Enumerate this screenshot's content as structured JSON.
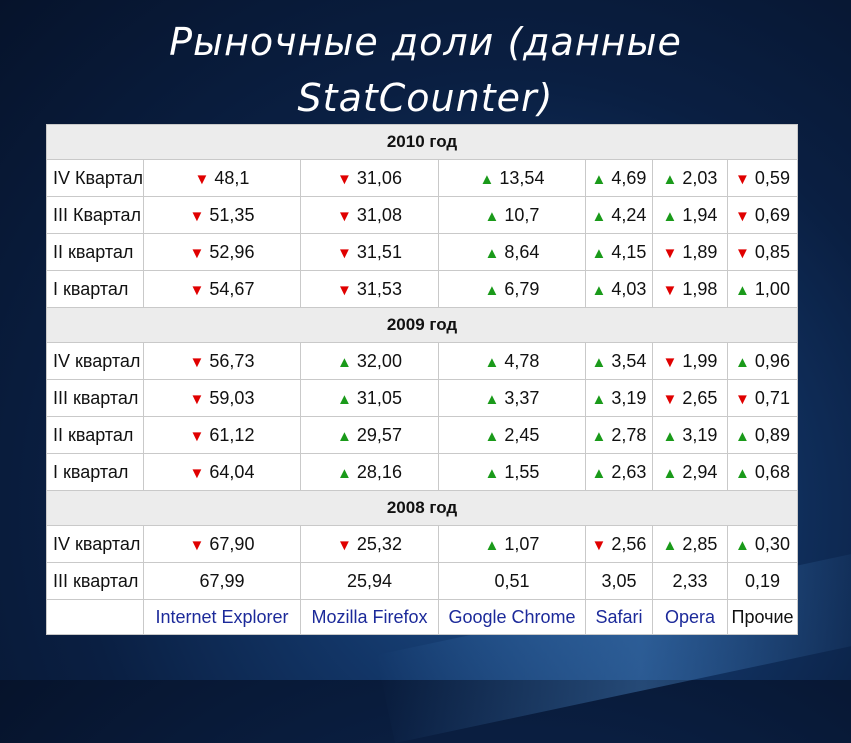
{
  "title_line1": "Рыночные доли (данные",
  "title_line2": "StatCounter)",
  "browsers": [
    "Internet Explorer",
    "Mozilla Firefox",
    "Google Chrome",
    "Safari",
    "Opera",
    "Прочие"
  ],
  "groups": [
    {
      "year": "2010 год",
      "rows": [
        {
          "label": "IV Квартал",
          "cells": [
            {
              "t": "down",
              "v": "48,1"
            },
            {
              "t": "down",
              "v": "31,06"
            },
            {
              "t": "up",
              "v": "13,54"
            },
            {
              "t": "up",
              "v": "4,69"
            },
            {
              "t": "up",
              "v": "2,03"
            },
            {
              "t": "down",
              "v": "0,59"
            }
          ]
        },
        {
          "label": "III Квартал",
          "cells": [
            {
              "t": "down",
              "v": "51,35"
            },
            {
              "t": "down",
              "v": "31,08"
            },
            {
              "t": "up",
              "v": "10,7"
            },
            {
              "t": "up",
              "v": "4,24"
            },
            {
              "t": "up",
              "v": "1,94"
            },
            {
              "t": "down",
              "v": "0,69"
            }
          ]
        },
        {
          "label": "II квартал",
          "cells": [
            {
              "t": "down",
              "v": "52,96"
            },
            {
              "t": "down",
              "v": "31,51"
            },
            {
              "t": "up",
              "v": "8,64"
            },
            {
              "t": "up",
              "v": "4,15"
            },
            {
              "t": "down",
              "v": "1,89"
            },
            {
              "t": "down",
              "v": "0,85"
            }
          ]
        },
        {
          "label": "I квартал",
          "cells": [
            {
              "t": "down",
              "v": "54,67"
            },
            {
              "t": "down",
              "v": "31,53"
            },
            {
              "t": "up",
              "v": "6,79"
            },
            {
              "t": "up",
              "v": "4,03"
            },
            {
              "t": "down",
              "v": "1,98"
            },
            {
              "t": "up",
              "v": "1,00"
            }
          ]
        }
      ]
    },
    {
      "year": "2009 год",
      "rows": [
        {
          "label": "IV квартал",
          "cells": [
            {
              "t": "down",
              "v": "56,73"
            },
            {
              "t": "up",
              "v": "32,00"
            },
            {
              "t": "up",
              "v": "4,78"
            },
            {
              "t": "up",
              "v": "3,54"
            },
            {
              "t": "down",
              "v": "1,99"
            },
            {
              "t": "up",
              "v": "0,96"
            }
          ]
        },
        {
          "label": "III квартал",
          "cells": [
            {
              "t": "down",
              "v": "59,03"
            },
            {
              "t": "up",
              "v": "31,05"
            },
            {
              "t": "up",
              "v": "3,37"
            },
            {
              "t": "up",
              "v": "3,19"
            },
            {
              "t": "down",
              "v": "2,65"
            },
            {
              "t": "down",
              "v": "0,71"
            }
          ]
        },
        {
          "label": "II квартал",
          "cells": [
            {
              "t": "down",
              "v": "61,12"
            },
            {
              "t": "up",
              "v": "29,57"
            },
            {
              "t": "up",
              "v": "2,45"
            },
            {
              "t": "up",
              "v": "2,78"
            },
            {
              "t": "up",
              "v": "3,19"
            },
            {
              "t": "up",
              "v": "0,89"
            }
          ]
        },
        {
          "label": "I квартал",
          "cells": [
            {
              "t": "down",
              "v": "64,04"
            },
            {
              "t": "up",
              "v": "28,16"
            },
            {
              "t": "up",
              "v": "1,55"
            },
            {
              "t": "up",
              "v": "2,63"
            },
            {
              "t": "up",
              "v": "2,94"
            },
            {
              "t": "up",
              "v": "0,68"
            }
          ]
        }
      ]
    },
    {
      "year": "2008 год",
      "rows": [
        {
          "label": "IV квартал",
          "cells": [
            {
              "t": "down",
              "v": "67,90"
            },
            {
              "t": "down",
              "v": "25,32"
            },
            {
              "t": "up",
              "v": "1,07"
            },
            {
              "t": "down",
              "v": "2,56"
            },
            {
              "t": "up",
              "v": "2,85"
            },
            {
              "t": "up",
              "v": "0,30"
            }
          ]
        },
        {
          "label": "III квартал",
          "cells": [
            {
              "t": "none",
              "v": "67,99"
            },
            {
              "t": "none",
              "v": "25,94"
            },
            {
              "t": "none",
              "v": "0,51"
            },
            {
              "t": "none",
              "v": "3,05"
            },
            {
              "t": "none",
              "v": "2,33"
            },
            {
              "t": "none",
              "v": "0,19"
            }
          ]
        }
      ]
    }
  ],
  "icons": {
    "up": "triangle-up-icon",
    "down": "triangle-down-icon"
  },
  "colors": {
    "up": "#1a9a1a",
    "down": "#e00000",
    "browser_label": "#1c2a9a",
    "year_row_bg": "#ececec"
  }
}
